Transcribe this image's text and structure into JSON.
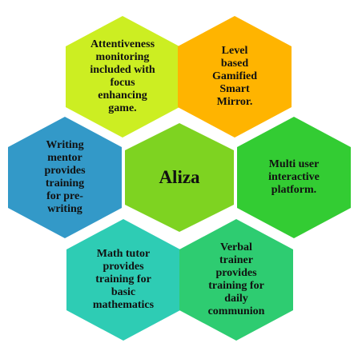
{
  "center": {
    "label": "Aliza",
    "color": "#7ED321"
  },
  "hexagons": [
    {
      "id": "attentiveness",
      "label": "Attentiveness\nmonitoring\nincluded with\nfocus\nenhancing\ngame.",
      "color": "#CCEE22"
    },
    {
      "id": "level-gamified",
      "label": "Level\nbased\nGamified\nSmart\nMirror.",
      "color": "#FFB400"
    },
    {
      "id": "writing-mentor",
      "label": "Writing\nmentor\nprovides\ntraining\nfor pre-\nwriting",
      "color": "#3399C8"
    },
    {
      "id": "multi-user",
      "label": "Multi user\ninteractive\nplatform.",
      "color": "#33CC33"
    },
    {
      "id": "math-tutor",
      "label": "Math tutor\nprovides\ntraining  for\nbasic\nmathematics",
      "color": "#2ECCB4"
    },
    {
      "id": "verbal-trainer",
      "label": "Verbal\ntrainer\nprovides\ntraining for\ndaily\ncommunion",
      "color": "#2ECC71"
    }
  ]
}
